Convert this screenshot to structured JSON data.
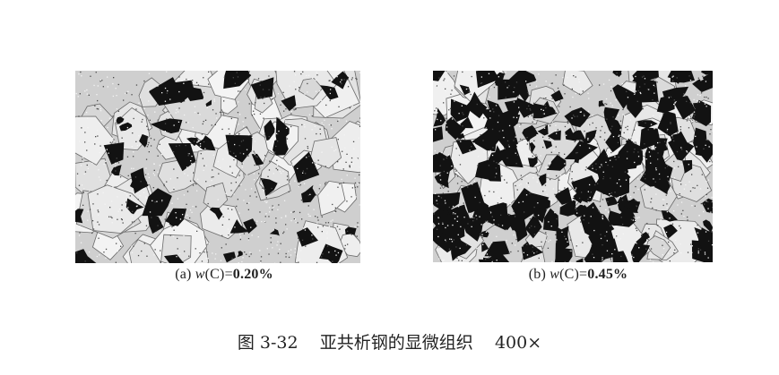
{
  "figure": {
    "panels": [
      {
        "tag": "(a)",
        "var": "w",
        "expr": "(C)=",
        "value": "0.20%"
      },
      {
        "tag": "(b)",
        "var": "w",
        "expr": "(C)=",
        "value": "0.45%"
      }
    ],
    "caption": {
      "number": "图 3-32",
      "title": "亚共析钢的显微组织",
      "magnification": "400×"
    }
  }
}
